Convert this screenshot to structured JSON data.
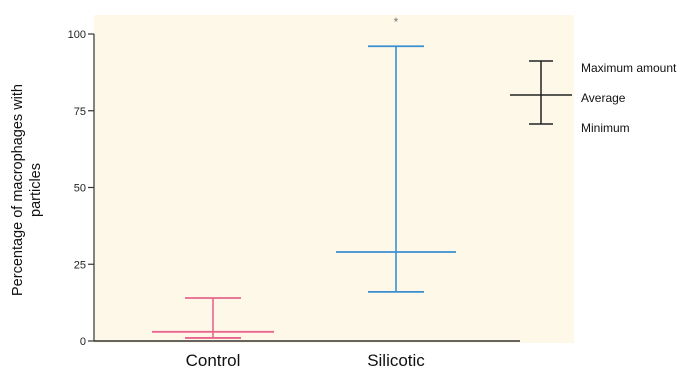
{
  "chart_data": {
    "type": "range",
    "ylabel_lines": [
      "Percentage of macrophages with",
      "particles"
    ],
    "ylim": [
      0,
      100
    ],
    "yticks": [
      0,
      25,
      50,
      75,
      100
    ],
    "categories": [
      "Control",
      "Silicotic"
    ],
    "series": [
      {
        "category": "Control",
        "min": 1,
        "average": 3,
        "max": 14,
        "color": "#e8668e"
      },
      {
        "category": "Silicotic",
        "min": 16,
        "average": 29,
        "max": 96,
        "color": "#3b8fd0"
      }
    ],
    "annotation": {
      "category": "Silicotic",
      "text": "*"
    },
    "key": {
      "max_label": "Maximum amount",
      "avg_label": "Average",
      "min_label": "Minimum",
      "color": "#222222"
    },
    "plot_background": "#fdf8e8",
    "grid": false
  }
}
